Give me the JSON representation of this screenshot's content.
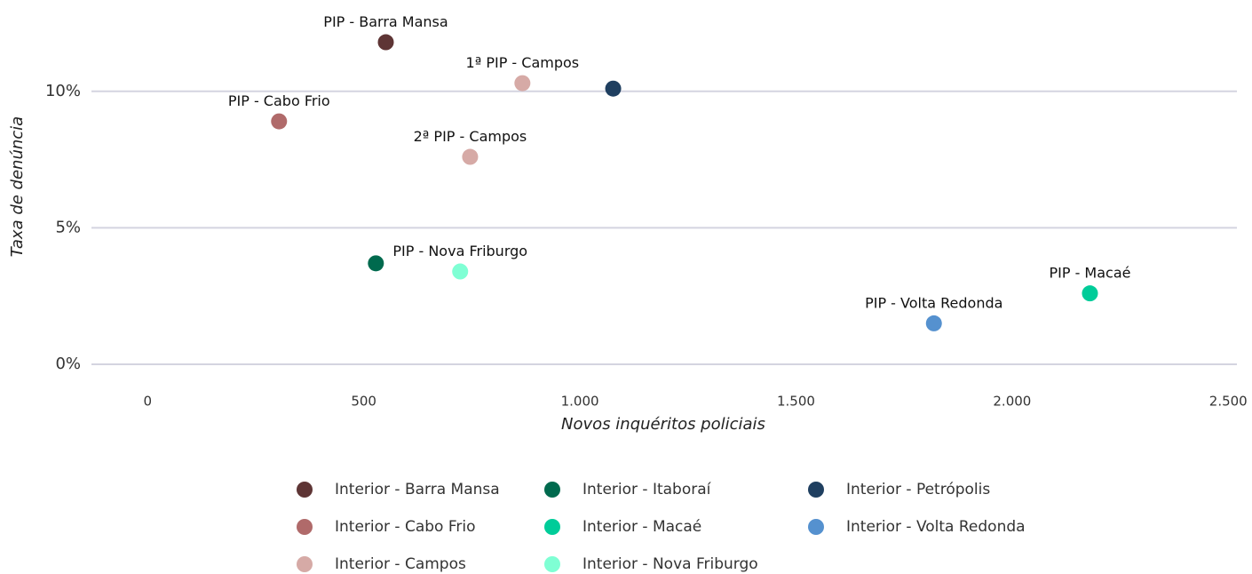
{
  "chart_data": {
    "type": "scatter",
    "x_label": "Novos inquéritos policiais",
    "y_label": "Taxa de denúncia",
    "xlim": [
      -130,
      2520
    ],
    "ylim": [
      0,
      12.5
    ],
    "xticks": [
      0,
      500,
      {
        "value": 1000,
        "label": "1.000"
      },
      {
        "value": 1500,
        "label": "1.500"
      },
      {
        "value": 2000,
        "label": "2.000"
      },
      {
        "value": 2500,
        "label": "2.500"
      }
    ],
    "yticks": [
      {
        "value": 0,
        "label": "0%"
      },
      {
        "value": 5,
        "label": "5%"
      },
      {
        "value": 10,
        "label": "10%"
      }
    ],
    "grid": true,
    "legend": "bottom",
    "series": [
      {
        "name": "Interior - Barra Mansa",
        "color": "#5e3535",
        "x": [
          551
        ],
        "y": [
          11.8
        ],
        "labels": [
          "PIP - Barra Mansa"
        ]
      },
      {
        "name": "Interior - Cabo Frio",
        "color": "#b06a6a",
        "x": [
          304
        ],
        "y": [
          8.9
        ],
        "labels": [
          "PIP - Cabo Frio"
        ]
      },
      {
        "name": "Interior - Campos",
        "color": "#d6aaa6",
        "x": [
          867,
          746
        ],
        "y": [
          10.3,
          7.6
        ],
        "labels": [
          "1ª PIP - Campos",
          "2ª PIP - Campos"
        ]
      },
      {
        "name": "Interior - Itaboraí",
        "color": "#006a4e",
        "x": [
          528
        ],
        "y": [
          3.7
        ],
        "labels": [
          null
        ]
      },
      {
        "name": "Interior - Macaé",
        "color": "#00cc99",
        "x": [
          2180
        ],
        "y": [
          2.6
        ],
        "labels": [
          "PIP - Macaé"
        ]
      },
      {
        "name": "Interior - Nova Friburgo",
        "color": "#7fffd4",
        "x": [
          723
        ],
        "y": [
          3.4
        ],
        "labels": [
          "PIP - Nova Friburgo"
        ]
      },
      {
        "name": "Interior - Petrópolis",
        "color": "#1f3f60",
        "x": [
          1077
        ],
        "y": [
          10.1
        ],
        "labels": [
          null
        ]
      },
      {
        "name": "Interior - Volta Redonda",
        "color": "#5591cf",
        "x": [
          1819
        ],
        "y": [
          1.5
        ],
        "labels": [
          "PIP - Volta Redonda"
        ]
      }
    ]
  }
}
